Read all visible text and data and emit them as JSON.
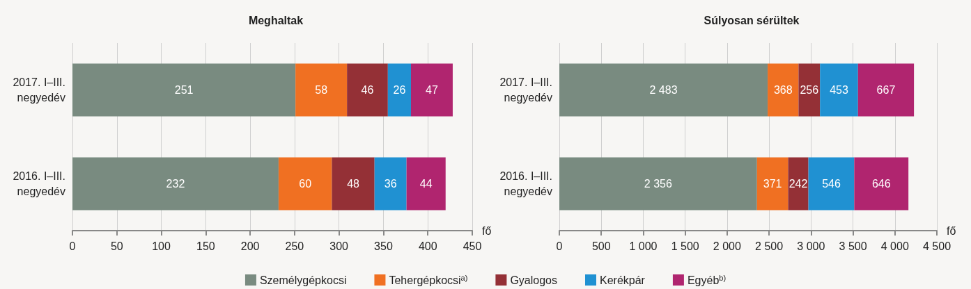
{
  "chart_data": [
    {
      "type": "bar",
      "title": "Meghaltak",
      "orientation": "horizontal",
      "stacked": true,
      "xlabel": "fő",
      "categories": [
        "2017. I–III.\nnegyedév",
        "2016. I–III.\nnegyedév"
      ],
      "series": [
        {
          "name": "Személygépkocsi",
          "color": "#798b80",
          "values": [
            251,
            232
          ]
        },
        {
          "name": "Tehergépkocsi$^{a)}$",
          "color": "#f07022",
          "values": [
            58,
            60
          ]
        },
        {
          "name": "Gyalogos",
          "color": "#943036",
          "values": [
            46,
            48
          ]
        },
        {
          "name": "Kerékpár",
          "color": "#2091d2",
          "values": [
            26,
            36
          ]
        },
        {
          "name": "Egyéb$^{b)}$",
          "color": "#b0256f",
          "values": [
            47,
            44
          ]
        }
      ],
      "xlim": [
        0,
        450
      ],
      "xticks": [
        0,
        50,
        100,
        150,
        200,
        250,
        300,
        350,
        400,
        450
      ],
      "grid": "x",
      "data_labels": true,
      "legend": "bottom"
    },
    {
      "type": "bar",
      "title": "Súlyosan sérültek",
      "orientation": "horizontal",
      "stacked": true,
      "xlabel": "fő",
      "categories": [
        "2017. I–III.\nnegyedév",
        "2016. I–III.\nnegyedév"
      ],
      "series": [
        {
          "color": "#798b80",
          "values": [
            2483,
            2356
          ],
          "value_labels": [
            "2 483",
            "2 356"
          ]
        },
        {
          "color": "#f07022",
          "values": [
            368,
            371
          ],
          "value_labels": [
            "368",
            "371"
          ]
        },
        {
          "color": "#943036",
          "values": [
            256,
            242
          ],
          "value_labels": [
            "256",
            "242"
          ]
        },
        {
          "color": "#2091d2",
          "values": [
            453,
            546
          ],
          "value_labels": [
            "453",
            "546"
          ]
        },
        {
          "color": "#b0256f",
          "values": [
            667,
            646
          ],
          "value_labels": [
            "667",
            "646"
          ]
        }
      ],
      "xlim": [
        0,
        4500
      ],
      "xticks": [
        0,
        {
          "value": 500,
          "label": "500"
        },
        {
          "value": 1000,
          "label": "1 000"
        },
        {
          "value": 1500,
          "label": "1 500"
        },
        {
          "value": 2000,
          "label": "2 000"
        },
        {
          "value": 2500,
          "label": "2 500"
        },
        {
          "value": 3000,
          "label": "3 000"
        },
        {
          "value": 3500,
          "label": "3 500"
        },
        {
          "value": 4000,
          "label": "4 000"
        },
        {
          "value": 4500,
          "label": "4 500"
        }
      ],
      "grid": "x"
    }
  ]
}
